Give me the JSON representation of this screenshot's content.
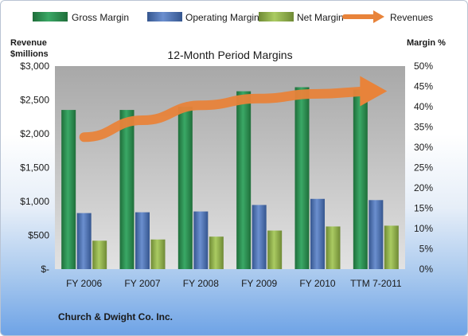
{
  "chart_data": {
    "type": "bar",
    "title": "12-Month Period Margins",
    "footer": "Church & Dwight Co. Inc.",
    "left_axis": {
      "title_line1": "Revenue",
      "title_line2": "$millions",
      "min": 0,
      "max": 3000,
      "ticks": [
        {
          "value": 0,
          "label": "$-"
        },
        {
          "value": 500,
          "label": "$500"
        },
        {
          "value": 1000,
          "label": "$1,000"
        },
        {
          "value": 1500,
          "label": "$1,500"
        },
        {
          "value": 2000,
          "label": "$2,000"
        },
        {
          "value": 2500,
          "label": "$2,500"
        },
        {
          "value": 3000,
          "label": "$3,000"
        }
      ]
    },
    "right_axis": {
      "title": "Margin %",
      "min": 0,
      "max": 50,
      "ticks": [
        {
          "value": 0,
          "label": "0%"
        },
        {
          "value": 5,
          "label": "5%"
        },
        {
          "value": 10,
          "label": "10%"
        },
        {
          "value": 15,
          "label": "15%"
        },
        {
          "value": 20,
          "label": "20%"
        },
        {
          "value": 25,
          "label": "25%"
        },
        {
          "value": 30,
          "label": "30%"
        },
        {
          "value": 35,
          "label": "35%"
        },
        {
          "value": 40,
          "label": "40%"
        },
        {
          "value": 45,
          "label": "45%"
        },
        {
          "value": 50,
          "label": "50%"
        }
      ]
    },
    "categories": [
      "FY 2006",
      "FY 2007",
      "FY 2008",
      "FY 2009",
      "FY 2010",
      "TTM 7-2011"
    ],
    "series": [
      {
        "name": "Gross Margin",
        "axis": "right",
        "kind": "bar",
        "color": "#2e8b4f",
        "values": [
          39.2,
          39.2,
          40.0,
          43.8,
          44.8,
          44.2
        ]
      },
      {
        "name": "Operating Margin",
        "axis": "right",
        "kind": "bar",
        "color": "#4e74b6",
        "values": [
          13.8,
          14.0,
          14.2,
          15.8,
          17.3,
          17.0
        ]
      },
      {
        "name": "Net Margin",
        "axis": "right",
        "kind": "bar",
        "color": "#93b44f",
        "values": [
          7.0,
          7.3,
          8.0,
          9.5,
          10.5,
          10.7
        ]
      },
      {
        "name": "Revenues",
        "axis": "left",
        "kind": "line",
        "color": "#e8833a",
        "values": [
          1950,
          2200,
          2420,
          2520,
          2590,
          2630
        ]
      }
    ],
    "grid": false,
    "legend_position": "top"
  }
}
